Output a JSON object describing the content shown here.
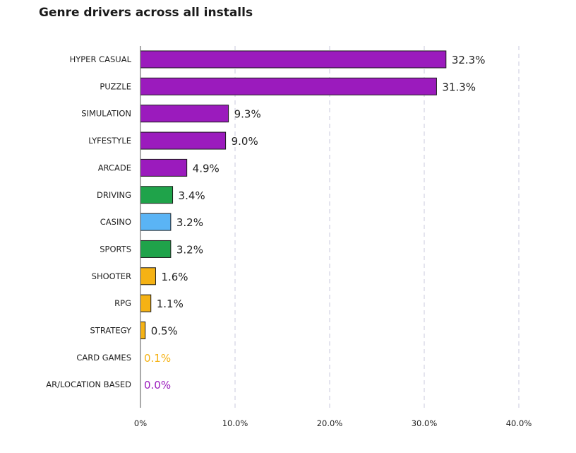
{
  "chart_data": {
    "type": "bar",
    "orientation": "horizontal",
    "title": "Genre drivers across all installs",
    "categories": [
      "HYPER CASUAL",
      "PUZZLE",
      "SIMULATION",
      "LYFESTYLE",
      "ARCADE",
      "DRIVING",
      "CASINO",
      "SPORTS",
      "SHOOTER",
      "RPG",
      "STRATEGY",
      "CARD GAMES",
      "AR/LOCATION BASED"
    ],
    "values": [
      32.3,
      31.3,
      9.3,
      9.0,
      4.9,
      3.4,
      3.2,
      3.2,
      1.6,
      1.1,
      0.5,
      0.1,
      0.0
    ],
    "value_labels": [
      "32.3%",
      "31.3%",
      "9.3%",
      "9.0%",
      "4.9%",
      "3.4%",
      "3.2%",
      "3.2%",
      "1.6%",
      "1.1%",
      "0.5%",
      "0.1%",
      "0.0%"
    ],
    "colors": [
      "#9b1bbd",
      "#9b1bbd",
      "#9b1bbd",
      "#9b1bbd",
      "#9b1bbd",
      "#1fa34a",
      "#5ab4f5",
      "#1fa34a",
      "#f5b214",
      "#f5b214",
      "#f5b214",
      "#f5b214",
      "#9b1bbd"
    ],
    "label_colors": [
      "#222222",
      "#222222",
      "#222222",
      "#222222",
      "#222222",
      "#222222",
      "#222222",
      "#222222",
      "#222222",
      "#222222",
      "#222222",
      "#f5b214",
      "#9b1bbd"
    ],
    "xlim": [
      0,
      40
    ],
    "xticks": [
      "0%",
      "10.0%",
      "20.0%",
      "30.0%",
      "40.0%"
    ],
    "xlabel": "",
    "ylabel": "",
    "grid": "vertical dashed",
    "legend": "none"
  }
}
